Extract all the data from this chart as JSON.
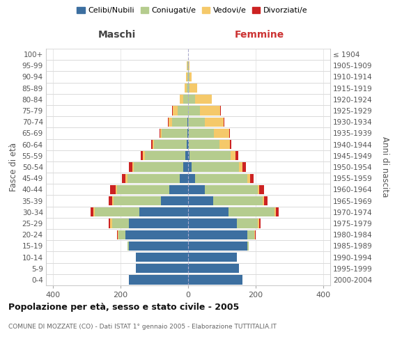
{
  "age_groups": [
    "0-4",
    "5-9",
    "10-14",
    "15-19",
    "20-24",
    "25-29",
    "30-34",
    "35-39",
    "40-44",
    "45-49",
    "50-54",
    "55-59",
    "60-64",
    "65-69",
    "70-74",
    "75-79",
    "80-84",
    "85-89",
    "90-94",
    "95-99",
    "100+"
  ],
  "birth_years": [
    "2000-2004",
    "1995-1999",
    "1990-1994",
    "1985-1989",
    "1980-1984",
    "1975-1979",
    "1970-1974",
    "1965-1969",
    "1960-1964",
    "1955-1959",
    "1950-1954",
    "1945-1949",
    "1940-1944",
    "1935-1939",
    "1930-1934",
    "1925-1929",
    "1920-1924",
    "1915-1919",
    "1910-1914",
    "1905-1909",
    "≤ 1904"
  ],
  "males": {
    "celibi": [
      175,
      155,
      155,
      175,
      185,
      175,
      145,
      80,
      55,
      25,
      15,
      8,
      5,
      3,
      2,
      0,
      0,
      0,
      0,
      0,
      0
    ],
    "coniugati": [
      0,
      0,
      0,
      5,
      20,
      50,
      130,
      140,
      155,
      155,
      145,
      120,
      95,
      75,
      45,
      30,
      15,
      5,
      3,
      2,
      0
    ],
    "vedovi": [
      0,
      0,
      0,
      0,
      2,
      5,
      5,
      5,
      5,
      5,
      5,
      5,
      5,
      5,
      10,
      15,
      10,
      5,
      3,
      2,
      0
    ],
    "divorziati": [
      0,
      0,
      0,
      0,
      2,
      5,
      8,
      10,
      15,
      10,
      10,
      8,
      5,
      2,
      2,
      2,
      0,
      0,
      0,
      0,
      0
    ]
  },
  "females": {
    "nubili": [
      160,
      150,
      145,
      175,
      175,
      145,
      120,
      75,
      50,
      20,
      10,
      5,
      3,
      2,
      0,
      0,
      0,
      0,
      0,
      0,
      0
    ],
    "coniugate": [
      0,
      0,
      0,
      5,
      20,
      60,
      135,
      145,
      155,
      155,
      140,
      120,
      90,
      75,
      50,
      35,
      20,
      5,
      5,
      2,
      0
    ],
    "vedove": [
      0,
      0,
      0,
      0,
      2,
      5,
      5,
      5,
      5,
      8,
      10,
      15,
      30,
      45,
      55,
      60,
      50,
      22,
      6,
      2,
      0
    ],
    "divorziate": [
      0,
      0,
      0,
      0,
      2,
      5,
      8,
      10,
      15,
      10,
      10,
      8,
      5,
      2,
      2,
      2,
      0,
      0,
      0,
      0,
      0
    ]
  },
  "colors": {
    "celibi": "#3c6fa0",
    "coniugati": "#b5cc8e",
    "vedovi": "#f5c96a",
    "divorziati": "#cc2222"
  },
  "xlim": 420,
  "title": "Popolazione per età, sesso e stato civile - 2005",
  "subtitle": "COMUNE DI MOZZATE (CO) - Dati ISTAT 1° gennaio 2005 - Elaborazione TUTTITALIA.IT",
  "ylabel_left": "Fasce di età",
  "ylabel_right": "Anni di nascita",
  "xlabel_maschi": "Maschi",
  "xlabel_femmine": "Femmine",
  "legend_labels": [
    "Celibi/Nubili",
    "Coniugati/e",
    "Vedovi/e",
    "Divorziati/e"
  ]
}
